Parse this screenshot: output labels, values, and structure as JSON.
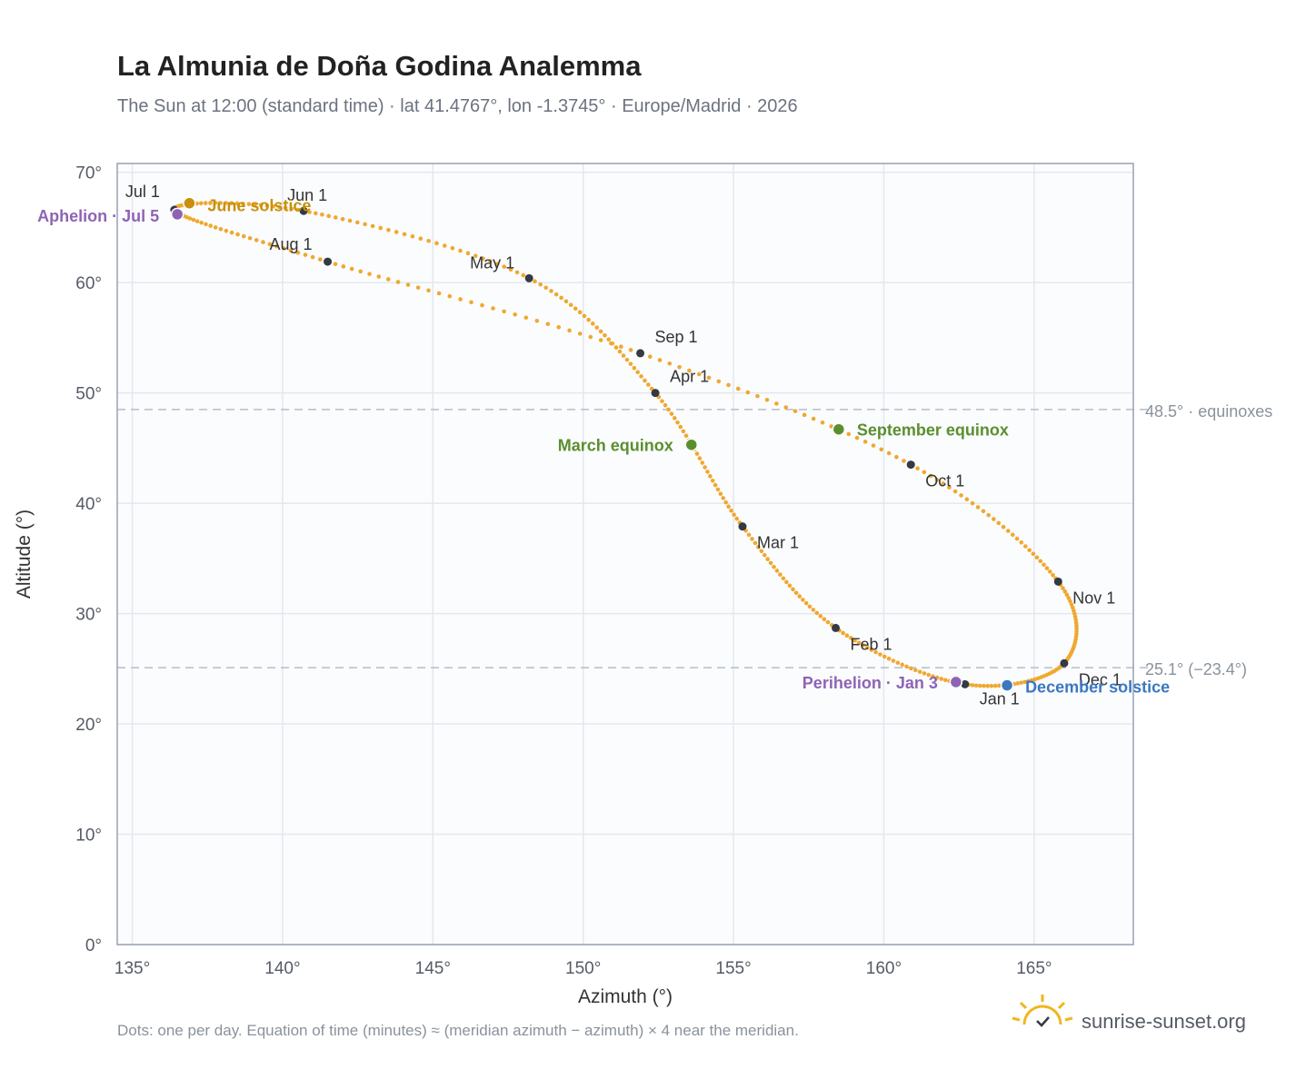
{
  "chart_data": {
    "type": "scatter",
    "title": "La Almunia de Doña Godina Analemma",
    "subtitle": "The Sun at 12:00 (standard time) · lat 41.4767°, lon -1.3745° · Europe/Madrid · 2026",
    "xlabel": "Azimuth (°)",
    "ylabel": "Altitude (°)",
    "xlim": [
      134.5,
      168.3
    ],
    "ylim": [
      0,
      70.8
    ],
    "x_ticks": [
      135,
      140,
      145,
      150,
      155,
      160,
      165
    ],
    "y_ticks": [
      0,
      10,
      20,
      30,
      40,
      50,
      60,
      70
    ],
    "x_tick_labels": [
      "135°",
      "140°",
      "145°",
      "150°",
      "155°",
      "160°",
      "165°"
    ],
    "y_tick_labels": [
      "0°",
      "10°",
      "20°",
      "30°",
      "40°",
      "50°",
      "60°",
      "70°"
    ],
    "grid": true,
    "curve_color": "#f0a830",
    "month_marker_color": "#333a44",
    "month_markers": [
      {
        "label": "Jan 1",
        "az": 162.7,
        "alt": 23.6
      },
      {
        "label": "Feb 1",
        "az": 158.4,
        "alt": 28.7
      },
      {
        "label": "Mar 1",
        "az": 155.3,
        "alt": 37.9
      },
      {
        "label": "Apr 1",
        "az": 152.4,
        "alt": 50.0
      },
      {
        "label": "May 1",
        "az": 148.2,
        "alt": 60.4
      },
      {
        "label": "Jun 1",
        "az": 140.7,
        "alt": 66.5
      },
      {
        "label": "Jul 1",
        "az": 136.4,
        "alt": 66.6
      },
      {
        "label": "Aug 1",
        "az": 141.5,
        "alt": 61.9
      },
      {
        "label": "Sep 1",
        "az": 151.9,
        "alt": 53.6
      },
      {
        "label": "Oct 1",
        "az": 160.9,
        "alt": 43.5
      },
      {
        "label": "Nov 1",
        "az": 165.8,
        "alt": 32.9
      },
      {
        "label": "Dec 1",
        "az": 166.0,
        "alt": 25.5
      }
    ],
    "events": [
      {
        "label": "June solstice",
        "az": 136.9,
        "alt": 67.2,
        "color": "#c8900c"
      },
      {
        "label": "Aphelion · Jul 5",
        "az": 136.5,
        "alt": 66.2,
        "color": "#8e63b5"
      },
      {
        "label": "March equinox",
        "az": 153.6,
        "alt": 45.3,
        "color": "#5a8f2e"
      },
      {
        "label": "September equinox",
        "az": 158.5,
        "alt": 46.7,
        "color": "#5a8f2e"
      },
      {
        "label": "Perihelion · Jan 3",
        "az": 162.4,
        "alt": 23.8,
        "color": "#8e63b5"
      },
      {
        "label": "December solstice",
        "az": 164.1,
        "alt": 23.5,
        "color": "#3b78c0"
      }
    ],
    "reference_lines": [
      {
        "alt": 48.5,
        "label": "48.5° · equinoxes"
      },
      {
        "alt": 25.1,
        "label": "25.1° (−23.4°)"
      }
    ],
    "annotation": "Dots: one per day. Equation of time (minutes) ≈ (meridian azimuth − azimuth) × 4 near the meridian."
  },
  "brand": {
    "name": "sunrise-sunset.org",
    "logo": "sun-logo-icon",
    "logo_color": "#f2b51c"
  }
}
